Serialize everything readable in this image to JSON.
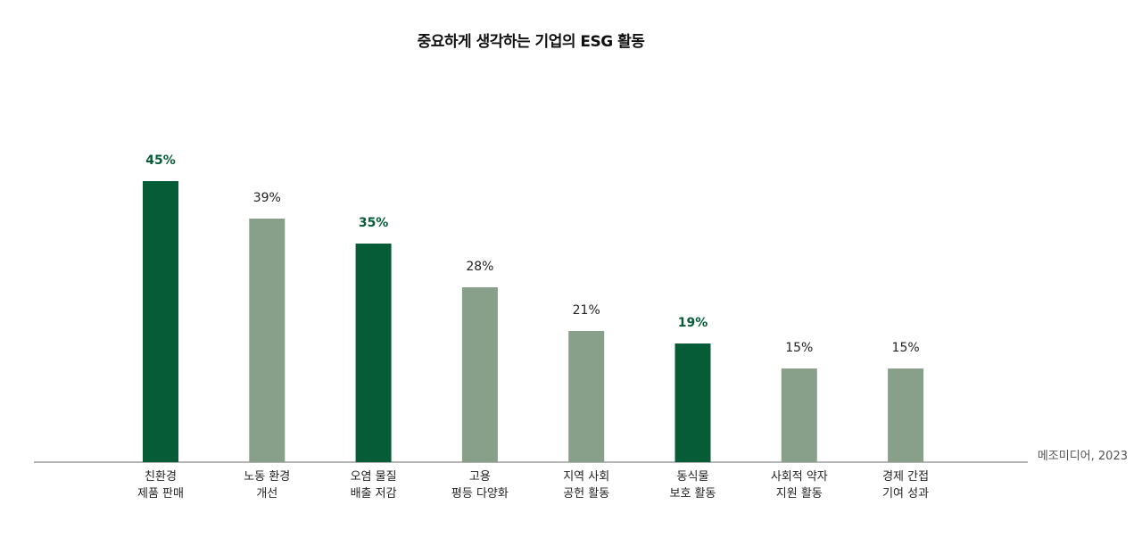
{
  "chart_data": {
    "type": "bar",
    "title": "중요하게 생각하는 기업의 ESG 활동",
    "categories": [
      [
        "친환경",
        "제품 판매"
      ],
      [
        "노동 환경",
        "개선"
      ],
      [
        "오염 물질",
        "배출 저감"
      ],
      [
        "고용",
        "평등 다양화"
      ],
      [
        "지역 사회",
        "공헌 활동"
      ],
      [
        "동식물",
        "보호 활동"
      ],
      [
        "사회적 약자",
        "지원 활동"
      ],
      [
        "경제 간접",
        "기여 성과"
      ]
    ],
    "values": [
      45,
      39,
      35,
      28,
      21,
      19,
      15,
      15
    ],
    "value_labels": [
      "45%",
      "39%",
      "35%",
      "28%",
      "21%",
      "19%",
      "15%",
      "15%"
    ],
    "highlighted": [
      true,
      false,
      true,
      false,
      false,
      true,
      false,
      false
    ],
    "unit": "%",
    "ylim": [
      0,
      45
    ],
    "grid": false,
    "source": "메조미디어, 2023",
    "colors": {
      "highlight": "#075C38",
      "normal": "#889F89",
      "highlight_label": "#075C38",
      "normal_label": "#222222",
      "axis": "#888888"
    }
  }
}
